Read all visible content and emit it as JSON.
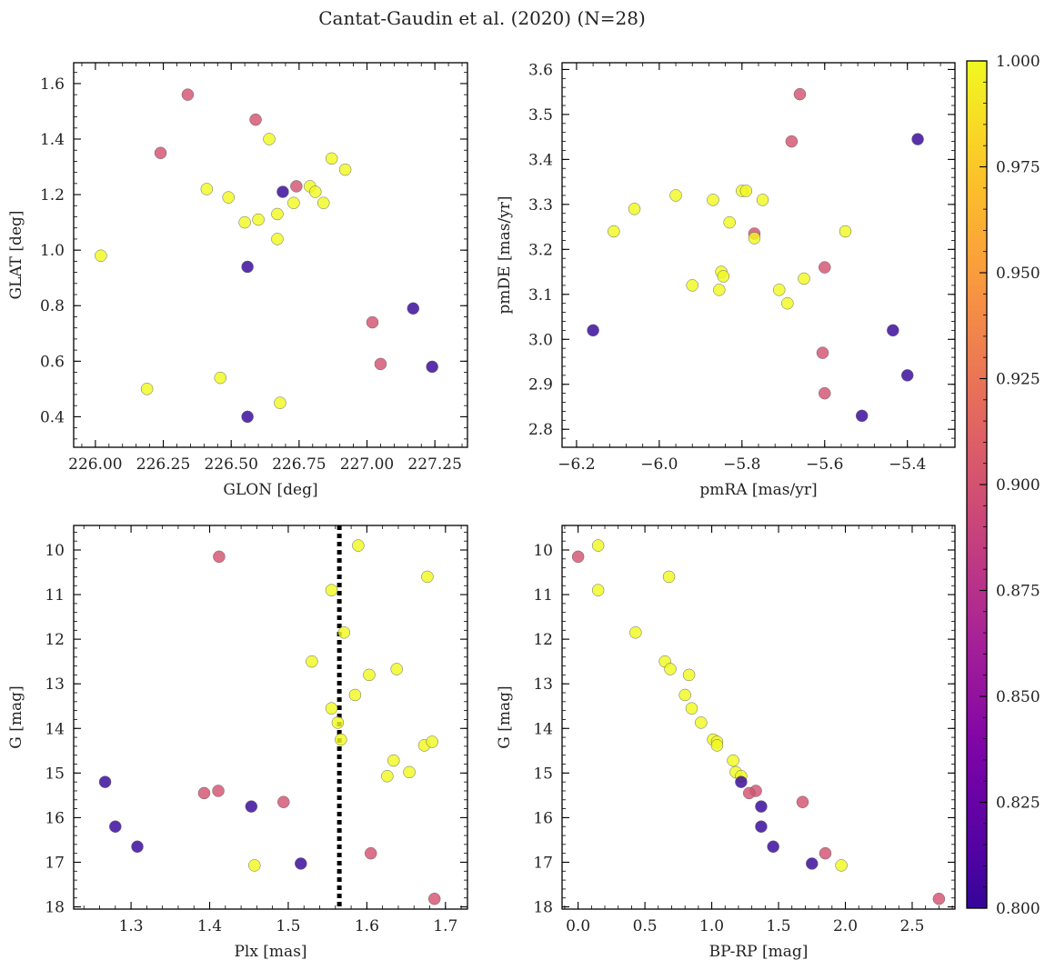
{
  "figure": {
    "title": "Cantat-Gaudin et al. (2020) (N=28)"
  },
  "colorbar": {
    "vmin": 0.8,
    "vmax": 1.0,
    "colormap": "plasma",
    "ticks": [
      0.8,
      0.825,
      0.85,
      0.875,
      0.9,
      0.925,
      0.95,
      0.975,
      1.0
    ],
    "tick_labels": [
      "0.800",
      "0.825",
      "0.850",
      "0.875",
      "0.900",
      "0.925",
      "0.950",
      "0.975",
      "1.000"
    ]
  },
  "chart_data": [
    {
      "type": "scatter",
      "panel": "top-left",
      "title": "",
      "xlabel": "GLON [deg]",
      "ylabel": "GLAT [deg]",
      "xlim": [
        225.92,
        227.37
      ],
      "ylim": [
        0.29,
        1.675
      ],
      "y_inverted": false,
      "xticks": [
        226.0,
        226.25,
        226.5,
        226.75,
        227.0,
        227.25
      ],
      "xtick_labels": [
        "226.00",
        "226.25",
        "226.50",
        "226.75",
        "227.00",
        "227.25"
      ],
      "yticks": [
        0.4,
        0.6,
        0.8,
        1.0,
        1.2,
        1.4,
        1.6
      ],
      "ytick_labels": [
        "0.4",
        "0.6",
        "0.8",
        "1.0",
        "1.2",
        "1.4",
        "1.6"
      ],
      "points": [
        {
          "x": 226.02,
          "y": 0.98,
          "c": 1.0
        },
        {
          "x": 226.19,
          "y": 0.5,
          "c": 1.0
        },
        {
          "x": 226.24,
          "y": 1.35,
          "c": 0.9
        },
        {
          "x": 226.34,
          "y": 1.56,
          "c": 0.9
        },
        {
          "x": 226.41,
          "y": 1.22,
          "c": 1.0
        },
        {
          "x": 226.46,
          "y": 0.54,
          "c": 1.0
        },
        {
          "x": 226.49,
          "y": 1.19,
          "c": 1.0
        },
        {
          "x": 226.55,
          "y": 1.1,
          "c": 1.0
        },
        {
          "x": 226.56,
          "y": 0.94,
          "c": 0.8
        },
        {
          "x": 226.56,
          "y": 0.4,
          "c": 0.8
        },
        {
          "x": 226.59,
          "y": 1.47,
          "c": 0.9
        },
        {
          "x": 226.6,
          "y": 1.11,
          "c": 1.0
        },
        {
          "x": 226.64,
          "y": 1.4,
          "c": 1.0
        },
        {
          "x": 226.67,
          "y": 1.13,
          "c": 1.0
        },
        {
          "x": 226.67,
          "y": 1.04,
          "c": 1.0
        },
        {
          "x": 226.68,
          "y": 0.45,
          "c": 1.0
        },
        {
          "x": 226.69,
          "y": 1.21,
          "c": 0.8
        },
        {
          "x": 226.73,
          "y": 1.17,
          "c": 1.0
        },
        {
          "x": 226.74,
          "y": 1.23,
          "c": 0.9
        },
        {
          "x": 226.79,
          "y": 1.23,
          "c": 1.0
        },
        {
          "x": 226.81,
          "y": 1.21,
          "c": 1.0
        },
        {
          "x": 226.84,
          "y": 1.17,
          "c": 1.0
        },
        {
          "x": 226.87,
          "y": 1.33,
          "c": 1.0
        },
        {
          "x": 226.92,
          "y": 1.29,
          "c": 1.0
        },
        {
          "x": 227.02,
          "y": 0.74,
          "c": 0.9
        },
        {
          "x": 227.05,
          "y": 0.59,
          "c": 0.9
        },
        {
          "x": 227.17,
          "y": 0.79,
          "c": 0.8
        },
        {
          "x": 227.24,
          "y": 0.58,
          "c": 0.8
        }
      ]
    },
    {
      "type": "scatter",
      "panel": "top-right",
      "title": "",
      "xlabel": "pmRA [mas/yr]",
      "ylabel": "pmDE [mas/yr]",
      "xlim": [
        -6.235,
        -5.285
      ],
      "ylim": [
        2.76,
        3.615
      ],
      "y_inverted": false,
      "xticks": [
        -6.2,
        -6.0,
        -5.8,
        -5.6,
        -5.4
      ],
      "xtick_labels": [
        "−6.2",
        "−6.0",
        "−5.8",
        "−5.6",
        "−5.4"
      ],
      "yticks": [
        2.8,
        2.9,
        3.0,
        3.1,
        3.2,
        3.3,
        3.4,
        3.5,
        3.6
      ],
      "ytick_labels": [
        "2.8",
        "2.9",
        "3.0",
        "3.1",
        "3.2",
        "3.3",
        "3.4",
        "3.5",
        "3.6"
      ],
      "points": [
        {
          "x": -6.16,
          "y": 3.02,
          "c": 0.8
        },
        {
          "x": -6.11,
          "y": 3.24,
          "c": 1.0
        },
        {
          "x": -6.06,
          "y": 3.29,
          "c": 1.0
        },
        {
          "x": -5.96,
          "y": 3.32,
          "c": 1.0
        },
        {
          "x": -5.92,
          "y": 3.12,
          "c": 1.0
        },
        {
          "x": -5.87,
          "y": 3.31,
          "c": 1.0
        },
        {
          "x": -5.85,
          "y": 3.15,
          "c": 1.0
        },
        {
          "x": -5.845,
          "y": 3.14,
          "c": 1.0
        },
        {
          "x": -5.855,
          "y": 3.11,
          "c": 1.0
        },
        {
          "x": -5.83,
          "y": 3.26,
          "c": 1.0
        },
        {
          "x": -5.8,
          "y": 3.33,
          "c": 1.0
        },
        {
          "x": -5.79,
          "y": 3.33,
          "c": 1.0
        },
        {
          "x": -5.77,
          "y": 3.235,
          "c": 0.9
        },
        {
          "x": -5.77,
          "y": 3.225,
          "c": 1.0
        },
        {
          "x": -5.75,
          "y": 3.31,
          "c": 1.0
        },
        {
          "x": -5.71,
          "y": 3.11,
          "c": 1.0
        },
        {
          "x": -5.69,
          "y": 3.08,
          "c": 1.0
        },
        {
          "x": -5.68,
          "y": 3.44,
          "c": 0.9
        },
        {
          "x": -5.66,
          "y": 3.545,
          "c": 0.9
        },
        {
          "x": -5.65,
          "y": 3.135,
          "c": 1.0
        },
        {
          "x": -5.6,
          "y": 3.16,
          "c": 0.9
        },
        {
          "x": -5.605,
          "y": 2.97,
          "c": 0.9
        },
        {
          "x": -5.6,
          "y": 2.88,
          "c": 0.9
        },
        {
          "x": -5.55,
          "y": 3.24,
          "c": 1.0
        },
        {
          "x": -5.51,
          "y": 2.83,
          "c": 0.8
        },
        {
          "x": -5.435,
          "y": 3.02,
          "c": 0.8
        },
        {
          "x": -5.4,
          "y": 2.92,
          "c": 0.8
        },
        {
          "x": -5.375,
          "y": 3.445,
          "c": 0.8
        }
      ]
    },
    {
      "type": "scatter",
      "panel": "bottom-left",
      "title": "",
      "xlabel": "Plx [mas]",
      "ylabel": "G [mag]",
      "xlim": [
        1.227,
        1.728
      ],
      "ylim": [
        18.05,
        9.45
      ],
      "y_inverted": true,
      "vline": 1.565,
      "xticks": [
        1.3,
        1.4,
        1.5,
        1.6,
        1.7
      ],
      "xtick_labels": [
        "1.3",
        "1.4",
        "1.5",
        "1.6",
        "1.7"
      ],
      "yticks": [
        10,
        11,
        12,
        13,
        14,
        15,
        16,
        17,
        18
      ],
      "ytick_labels": [
        "10",
        "11",
        "12",
        "13",
        "14",
        "15",
        "16",
        "17",
        "18"
      ],
      "points": [
        {
          "x": 1.267,
          "y": 15.2,
          "c": 0.8
        },
        {
          "x": 1.28,
          "y": 16.2,
          "c": 0.8
        },
        {
          "x": 1.308,
          "y": 16.65,
          "c": 0.8
        },
        {
          "x": 1.393,
          "y": 15.45,
          "c": 0.9
        },
        {
          "x": 1.411,
          "y": 15.4,
          "c": 0.9
        },
        {
          "x": 1.412,
          "y": 10.15,
          "c": 0.9
        },
        {
          "x": 1.453,
          "y": 15.75,
          "c": 0.8
        },
        {
          "x": 1.457,
          "y": 17.07,
          "c": 1.0
        },
        {
          "x": 1.494,
          "y": 15.65,
          "c": 0.9
        },
        {
          "x": 1.516,
          "y": 17.03,
          "c": 0.8
        },
        {
          "x": 1.53,
          "y": 12.5,
          "c": 1.0
        },
        {
          "x": 1.555,
          "y": 10.9,
          "c": 1.0
        },
        {
          "x": 1.555,
          "y": 13.55,
          "c": 1.0
        },
        {
          "x": 1.563,
          "y": 13.87,
          "c": 1.0
        },
        {
          "x": 1.567,
          "y": 14.25,
          "c": 1.0
        },
        {
          "x": 1.571,
          "y": 11.85,
          "c": 1.0
        },
        {
          "x": 1.585,
          "y": 13.25,
          "c": 1.0
        },
        {
          "x": 1.589,
          "y": 9.9,
          "c": 1.0
        },
        {
          "x": 1.603,
          "y": 12.8,
          "c": 1.0
        },
        {
          "x": 1.605,
          "y": 16.8,
          "c": 0.9
        },
        {
          "x": 1.626,
          "y": 15.07,
          "c": 1.0
        },
        {
          "x": 1.634,
          "y": 14.72,
          "c": 1.0
        },
        {
          "x": 1.638,
          "y": 12.67,
          "c": 1.0
        },
        {
          "x": 1.654,
          "y": 14.98,
          "c": 1.0
        },
        {
          "x": 1.673,
          "y": 14.38,
          "c": 1.0
        },
        {
          "x": 1.677,
          "y": 10.6,
          "c": 1.0
        },
        {
          "x": 1.683,
          "y": 14.3,
          "c": 1.0
        },
        {
          "x": 1.686,
          "y": 17.82,
          "c": 0.9
        }
      ]
    },
    {
      "type": "scatter",
      "panel": "bottom-right",
      "title": "",
      "xlabel": "BP-RP [mag]",
      "ylabel": "G [mag]",
      "xlim": [
        -0.12,
        2.82
      ],
      "ylim": [
        18.05,
        9.45
      ],
      "y_inverted": true,
      "xticks": [
        0.0,
        0.5,
        1.0,
        1.5,
        2.0,
        2.5
      ],
      "xtick_labels": [
        "0.0",
        "0.5",
        "1.0",
        "1.5",
        "2.0",
        "2.5"
      ],
      "yticks": [
        10,
        11,
        12,
        13,
        14,
        15,
        16,
        17,
        18
      ],
      "ytick_labels": [
        "10",
        "11",
        "12",
        "13",
        "14",
        "15",
        "16",
        "17",
        "18"
      ],
      "points": [
        {
          "x": 0.0,
          "y": 10.15,
          "c": 0.9
        },
        {
          "x": 0.15,
          "y": 9.9,
          "c": 1.0
        },
        {
          "x": 0.15,
          "y": 10.9,
          "c": 1.0
        },
        {
          "x": 0.68,
          "y": 10.6,
          "c": 1.0
        },
        {
          "x": 0.43,
          "y": 11.85,
          "c": 1.0
        },
        {
          "x": 0.65,
          "y": 12.5,
          "c": 1.0
        },
        {
          "x": 0.69,
          "y": 12.67,
          "c": 1.0
        },
        {
          "x": 0.83,
          "y": 12.8,
          "c": 1.0
        },
        {
          "x": 0.8,
          "y": 13.25,
          "c": 1.0
        },
        {
          "x": 0.85,
          "y": 13.55,
          "c": 1.0
        },
        {
          "x": 0.92,
          "y": 13.87,
          "c": 1.0
        },
        {
          "x": 1.01,
          "y": 14.25,
          "c": 1.0
        },
        {
          "x": 1.04,
          "y": 14.3,
          "c": 1.0
        },
        {
          "x": 1.04,
          "y": 14.38,
          "c": 1.0
        },
        {
          "x": 1.16,
          "y": 14.72,
          "c": 1.0
        },
        {
          "x": 1.18,
          "y": 14.98,
          "c": 1.0
        },
        {
          "x": 1.22,
          "y": 15.07,
          "c": 1.0
        },
        {
          "x": 1.22,
          "y": 15.2,
          "c": 0.8
        },
        {
          "x": 1.33,
          "y": 15.4,
          "c": 0.9
        },
        {
          "x": 1.28,
          "y": 15.45,
          "c": 0.9
        },
        {
          "x": 1.68,
          "y": 15.65,
          "c": 0.9
        },
        {
          "x": 1.37,
          "y": 15.75,
          "c": 0.8
        },
        {
          "x": 1.37,
          "y": 16.2,
          "c": 0.8
        },
        {
          "x": 1.46,
          "y": 16.65,
          "c": 0.8
        },
        {
          "x": 1.85,
          "y": 16.8,
          "c": 0.9
        },
        {
          "x": 1.75,
          "y": 17.03,
          "c": 0.8
        },
        {
          "x": 1.97,
          "y": 17.07,
          "c": 1.0
        },
        {
          "x": 2.7,
          "y": 17.82,
          "c": 0.9
        }
      ]
    }
  ]
}
